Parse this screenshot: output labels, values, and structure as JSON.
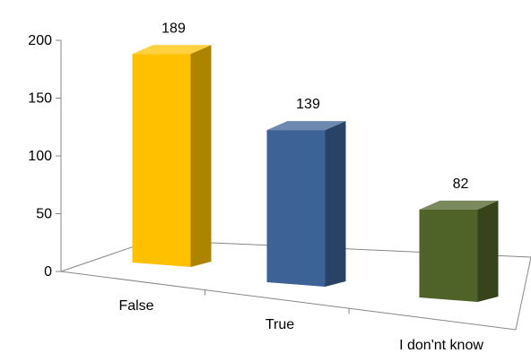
{
  "chart_data": {
    "type": "bar",
    "categories": [
      "False",
      "True",
      "I don'nt know"
    ],
    "values": [
      189,
      139,
      82
    ],
    "colors": [
      "#ffc000",
      "#3c6296",
      "#4f6228"
    ],
    "ylim": [
      0,
      200
    ],
    "yticks": [
      0,
      50,
      100,
      150,
      200
    ],
    "grid": false,
    "legend": "none",
    "title": "",
    "xlabel": "",
    "ylabel": ""
  }
}
